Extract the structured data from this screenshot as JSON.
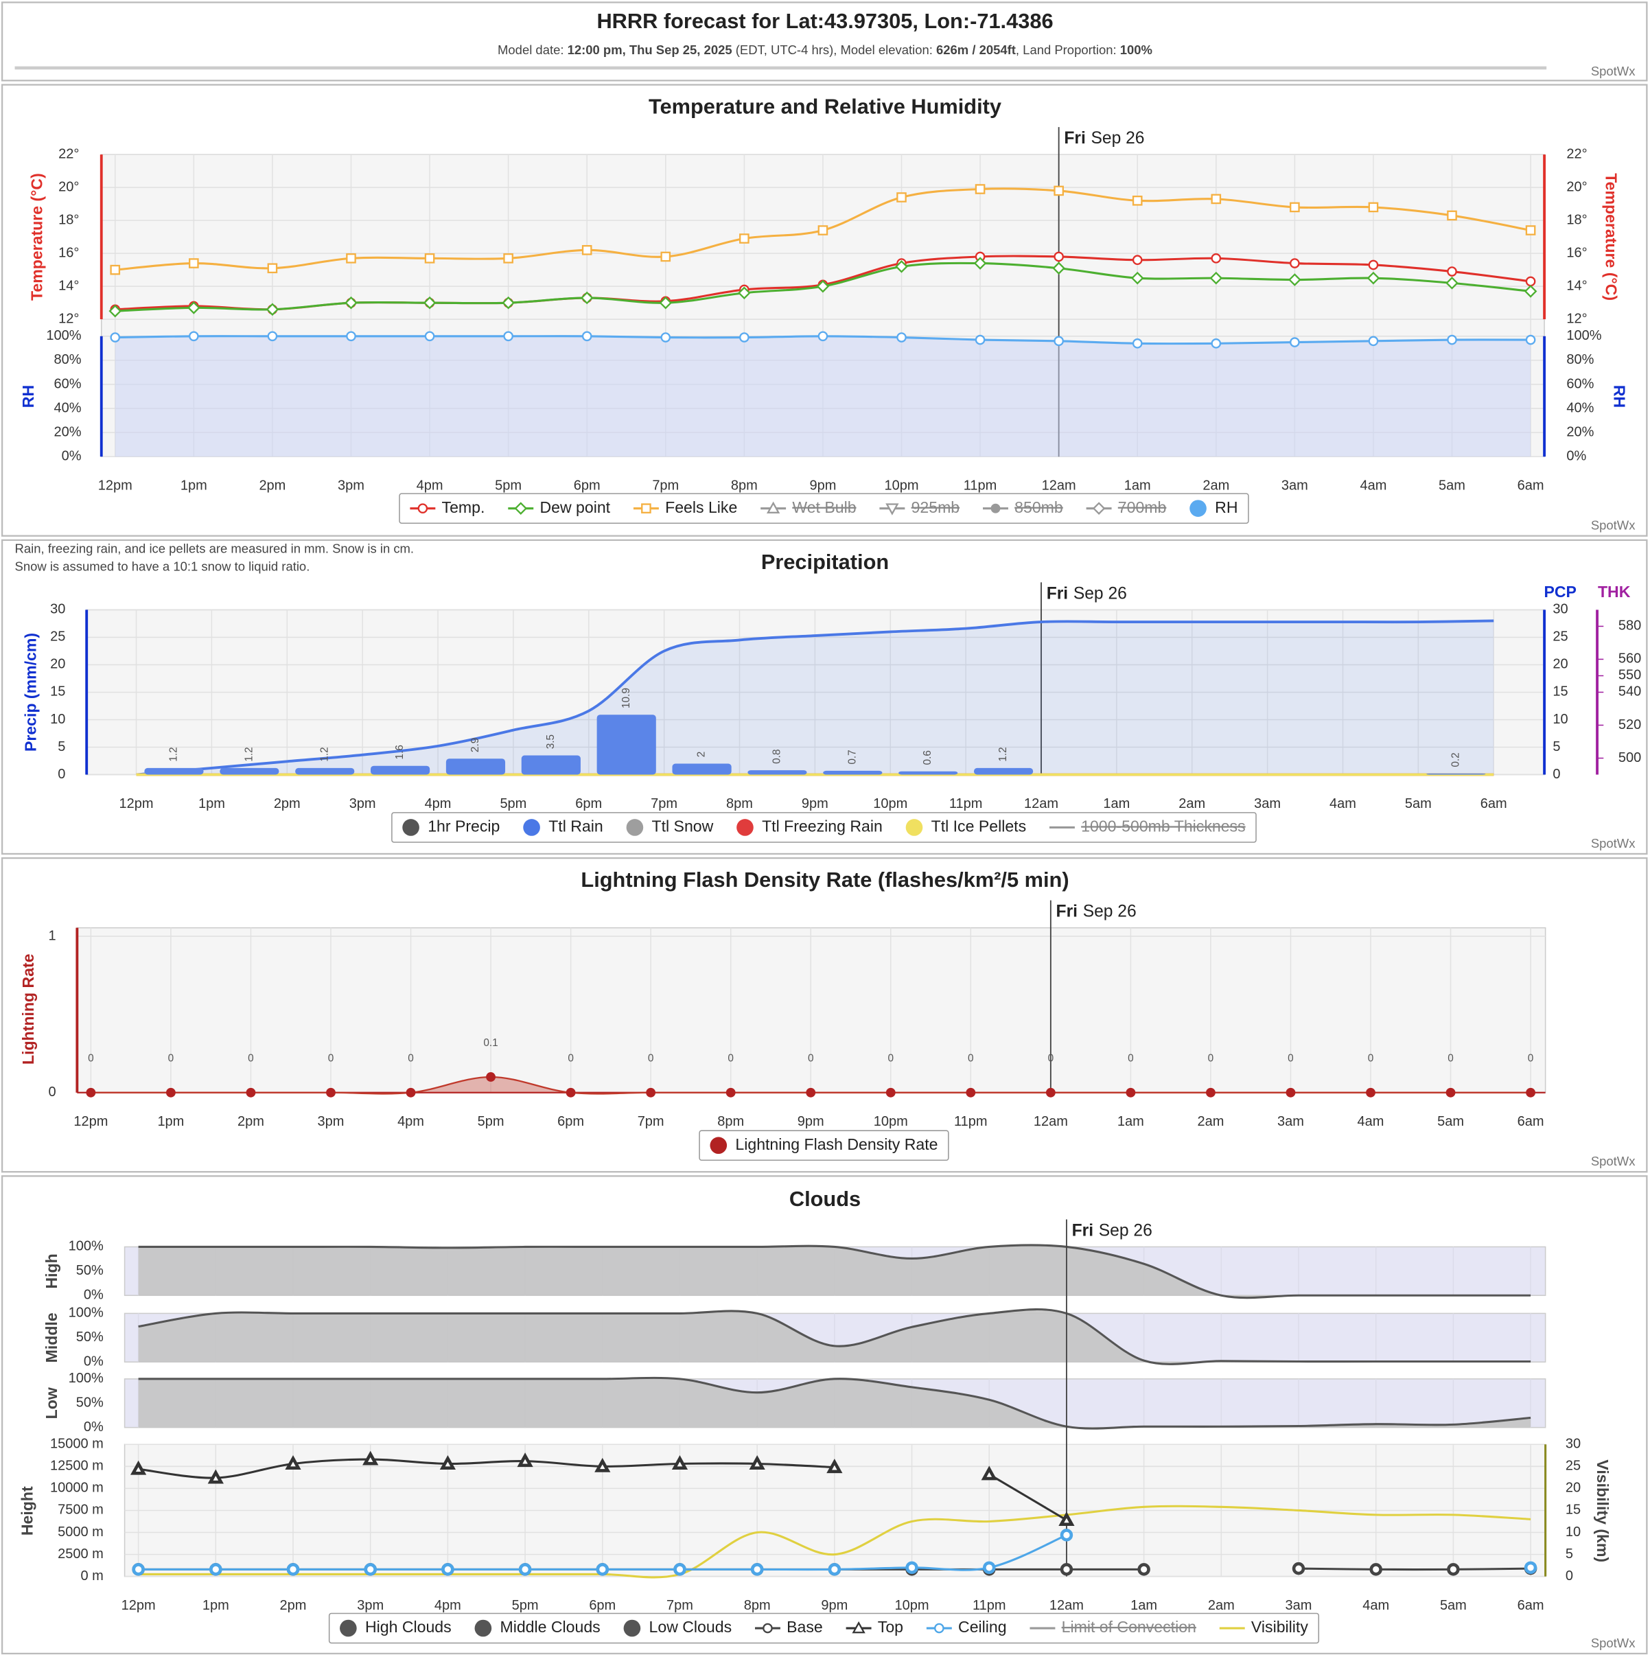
{
  "header": {
    "title": "HRRR forecast for Lat:43.97305, Lon:-71.4386",
    "subtitle": [
      {
        "text": "Model date: ",
        "bold": false
      },
      {
        "text": "12:00 pm, Thu Sep 25, 2025",
        "bold": true
      },
      {
        "text": " (EDT, UTC-4 hrs), Model elevation: ",
        "bold": false
      },
      {
        "text": "626m / 2054ft",
        "bold": true
      },
      {
        "text": ", Land Proportion: ",
        "bold": false
      },
      {
        "text": "100%",
        "bold": true
      }
    ]
  },
  "brand": "SpotWx",
  "chart_data": [
    {
      "type": "line",
      "title": "Temperature and Relative Humidity",
      "date_marker": {
        "weekday": "Fri",
        "date": "Sep 26",
        "x": "12am"
      },
      "categories": [
        "12pm",
        "1pm",
        "2pm",
        "3pm",
        "4pm",
        "5pm",
        "6pm",
        "7pm",
        "8pm",
        "9pm",
        "10pm",
        "11pm",
        "12am",
        "1am",
        "2am",
        "3am",
        "4am",
        "5am",
        "6am"
      ],
      "ylabel": "Temperature (°C)",
      "ylim": [
        12,
        22
      ],
      "yticks": [
        {
          "value": 12,
          "label": "12°"
        },
        {
          "value": 14,
          "label": "14°"
        },
        {
          "value": 16,
          "label": "16°"
        },
        {
          "value": 18,
          "label": "18°"
        },
        {
          "value": 20,
          "label": "20°"
        },
        {
          "value": 22,
          "label": "22°"
        }
      ],
      "rh_ylabel": "RH",
      "rh_ylim": [
        0,
        100
      ],
      "rh_yticks": [
        {
          "value": 0,
          "label": "0%"
        },
        {
          "value": 20,
          "label": "20%"
        },
        {
          "value": 40,
          "label": "40%"
        },
        {
          "value": 60,
          "label": "60%"
        },
        {
          "value": 80,
          "label": "80%"
        },
        {
          "value": 100,
          "label": "100%"
        }
      ],
      "grid": true,
      "series": [
        {
          "name": "Temp.",
          "color": "#e0302a",
          "style": "line",
          "marker": "circle",
          "values": [
            12.6,
            12.8,
            12.6,
            13.0,
            13.0,
            13.0,
            13.3,
            13.1,
            13.8,
            14.1,
            15.4,
            15.8,
            15.8,
            15.6,
            15.7,
            15.4,
            15.3,
            14.9,
            14.3
          ]
        },
        {
          "name": "Dew point",
          "color": "#4caf30",
          "style": "line",
          "marker": "diamond",
          "values": [
            12.5,
            12.7,
            12.6,
            13.0,
            13.0,
            13.0,
            13.3,
            13.0,
            13.6,
            14.0,
            15.2,
            15.4,
            15.1,
            14.5,
            14.5,
            14.4,
            14.5,
            14.2,
            13.7
          ]
        },
        {
          "name": "Feels Like",
          "color": "#f5b041",
          "style": "line",
          "marker": "square",
          "values": [
            15.0,
            15.4,
            15.1,
            15.7,
            15.7,
            15.7,
            16.2,
            15.8,
            16.9,
            17.4,
            19.4,
            19.9,
            19.8,
            19.2,
            19.3,
            18.8,
            18.8,
            18.3,
            17.4
          ]
        },
        {
          "name": "Wet Bulb",
          "color": "#888888",
          "style": "line",
          "marker": "triangle",
          "hidden": true
        },
        {
          "name": "925mb",
          "color": "#888888",
          "style": "line",
          "marker": "triangle-down",
          "hidden": true
        },
        {
          "name": "850mb",
          "color": "#888888",
          "style": "line",
          "marker": "dot",
          "hidden": true
        },
        {
          "name": "700mb",
          "color": "#888888",
          "style": "line",
          "marker": "diamond",
          "hidden": true
        },
        {
          "name": "RH",
          "color": "#5aaaf0",
          "style": "fill",
          "marker": "circle",
          "axis": "rh",
          "values": [
            99,
            100,
            100,
            100,
            100,
            100,
            100,
            99,
            99,
            100,
            99,
            97,
            96,
            94,
            94,
            95,
            96,
            97,
            97
          ]
        }
      ]
    },
    {
      "type": "bar",
      "title": "Precipitation",
      "notes": [
        "Rain, freezing rain, and ice pellets are measured in mm. Snow is in cm.",
        "Snow is assumed to have a 10:1 snow to liquid ratio."
      ],
      "date_marker": {
        "weekday": "Fri",
        "date": "Sep 26",
        "x": "12am"
      },
      "categories": [
        "12pm",
        "1pm",
        "2pm",
        "3pm",
        "4pm",
        "5pm",
        "6pm",
        "7pm",
        "8pm",
        "9pm",
        "10pm",
        "11pm",
        "12am",
        "1am",
        "2am",
        "3am",
        "4am",
        "5am",
        "6am"
      ],
      "ylabel": "Precip (mm/cm)",
      "ylim": [
        0,
        30
      ],
      "yticks": [
        0,
        5,
        10,
        15,
        20,
        25,
        30
      ],
      "y2label": "PCP",
      "y2lim": [
        0,
        30
      ],
      "y2ticks": [
        0,
        5,
        10,
        15,
        20,
        25,
        30
      ],
      "y3label": "THK",
      "y3lim": [
        490,
        590
      ],
      "y3ticks": [
        500,
        520,
        540,
        550,
        560,
        580
      ],
      "grid": true,
      "series": [
        {
          "name": "1hr Precip",
          "color": "#555555",
          "bar_color": "#5b85e8",
          "style": "bar",
          "values": [
            null,
            1.2,
            1.2,
            1.2,
            1.6,
            2.9,
            3.5,
            10.9,
            2,
            0.8,
            0.7,
            0.6,
            1.2,
            null,
            null,
            null,
            null,
            null,
            0.2
          ]
        },
        {
          "name": "Ttl Rain",
          "color": "#4a78e6",
          "style": "fill",
          "values": [
            0,
            1.2,
            2.4,
            3.6,
            5.2,
            8.1,
            11.6,
            22.5,
            24.5,
            25.3,
            26.0,
            26.6,
            27.8,
            27.8,
            27.8,
            27.8,
            27.8,
            27.8,
            28.0
          ]
        },
        {
          "name": "Ttl Snow",
          "color": "#9e9e9e",
          "style": "fill",
          "values": [
            0,
            0,
            0,
            0,
            0,
            0,
            0,
            0,
            0,
            0,
            0,
            0,
            0,
            0,
            0,
            0,
            0,
            0,
            0
          ]
        },
        {
          "name": "Ttl Freezing Rain",
          "color": "#e03c3c",
          "style": "fill",
          "values": [
            0,
            0,
            0,
            0,
            0,
            0,
            0,
            0,
            0,
            0,
            0,
            0,
            0,
            0,
            0,
            0,
            0,
            0,
            0
          ]
        },
        {
          "name": "Ttl Ice Pellets",
          "color": "#f0e060",
          "style": "fill",
          "values": [
            0,
            0,
            0,
            0,
            0,
            0,
            0,
            0,
            0,
            0,
            0,
            0,
            0,
            0,
            0,
            0,
            0,
            0,
            0
          ]
        },
        {
          "name": "1000-500mb Thickness",
          "color": "#888888",
          "style": "line",
          "marker": "none",
          "hidden": true
        }
      ]
    },
    {
      "type": "area",
      "title": "Lightning Flash Density Rate (flashes/km²/5 min)",
      "date_marker": {
        "weekday": "Fri",
        "date": "Sep 26",
        "x": "12am"
      },
      "categories": [
        "12pm",
        "1pm",
        "2pm",
        "3pm",
        "4pm",
        "5pm",
        "6pm",
        "7pm",
        "8pm",
        "9pm",
        "10pm",
        "11pm",
        "12am",
        "1am",
        "2am",
        "3am",
        "4am",
        "5am",
        "6am"
      ],
      "ylabel": "Lightning Rate",
      "ylim": [
        0,
        1
      ],
      "yticks": [
        0,
        1
      ],
      "grid": true,
      "series": [
        {
          "name": "Lightning Flash Density Rate",
          "color": "#b22222",
          "style": "fill",
          "marker": "dot",
          "values": [
            0,
            0,
            0,
            0,
            0,
            0.1,
            0,
            0,
            0,
            0,
            0,
            0,
            0,
            0,
            0,
            0,
            0,
            0,
            0
          ]
        }
      ]
    },
    {
      "type": "cloud",
      "title": "Clouds",
      "date_marker": {
        "weekday": "Fri",
        "date": "Sep 26",
        "x": "12am"
      },
      "categories": [
        "12pm",
        "1pm",
        "2pm",
        "3pm",
        "4pm",
        "5pm",
        "6pm",
        "7pm",
        "8pm",
        "9pm",
        "10pm",
        "11pm",
        "12am",
        "1am",
        "2am",
        "3am",
        "4am",
        "5am",
        "6am"
      ],
      "pane_ylim": [
        0,
        100
      ],
      "pane_yticks": [
        {
          "value": 0,
          "label": "0%"
        },
        {
          "value": 50,
          "label": "50%"
        },
        {
          "value": 100,
          "label": "100%"
        }
      ],
      "ylabel": "Height",
      "ylim": [
        0,
        15000
      ],
      "yticks": [
        {
          "value": 0,
          "label": "0 m"
        },
        {
          "value": 2500,
          "label": "2500 m"
        },
        {
          "value": 5000,
          "label": "5000 m"
        },
        {
          "value": 7500,
          "label": "7500 m"
        },
        {
          "value": 10000,
          "label": "10000 m"
        },
        {
          "value": 12500,
          "label": "12500 m"
        },
        {
          "value": 15000,
          "label": "15000 m"
        }
      ],
      "y2label": "Visibility (km)",
      "y2lim": [
        0,
        30
      ],
      "y2ticks": [
        0,
        5,
        10,
        15,
        20,
        25,
        30
      ],
      "grid": true,
      "series": [
        {
          "name": "High Clouds",
          "pane_label": "High",
          "color": "#555555",
          "style": "fill",
          "values": [
            100,
            100,
            100,
            100,
            98,
            100,
            100,
            100,
            100,
            100,
            76,
            100,
            100,
            65,
            0,
            0,
            0,
            0,
            0
          ]
        },
        {
          "name": "Middle Clouds",
          "pane_label": "Middle",
          "color": "#555555",
          "style": "fill",
          "values": [
            73,
            100,
            100,
            100,
            100,
            100,
            100,
            100,
            100,
            33,
            72,
            100,
            100,
            3,
            2,
            1,
            1,
            1,
            1
          ]
        },
        {
          "name": "Low Clouds",
          "pane_label": "Low",
          "color": "#555555",
          "style": "fill",
          "values": [
            100,
            100,
            100,
            100,
            100,
            100,
            100,
            100,
            72,
            100,
            83,
            57,
            2,
            2,
            2,
            3,
            7,
            6,
            20
          ]
        },
        {
          "name": "Base",
          "color": "#444444",
          "style": "line",
          "marker": "circle",
          "values": [
            800,
            800,
            800,
            800,
            800,
            800,
            800,
            800,
            800,
            800,
            800,
            800,
            800,
            800,
            null,
            900,
            800,
            800,
            900
          ]
        },
        {
          "name": "Top",
          "color": "#333333",
          "style": "line",
          "marker": "triangle",
          "values": [
            12200,
            11200,
            12800,
            13300,
            12800,
            13100,
            12500,
            12800,
            12800,
            12400,
            null,
            11600,
            6400,
            null,
            null,
            null,
            null,
            null,
            null
          ]
        },
        {
          "name": "Ceiling",
          "color": "#4da6e8",
          "style": "line",
          "marker": "circle",
          "values": [
            800,
            800,
            800,
            800,
            800,
            800,
            800,
            800,
            800,
            800,
            1000,
            1000,
            4700,
            null,
            null,
            null,
            null,
            null,
            1000
          ]
        },
        {
          "name": "Limit of Convection",
          "color": "#888888",
          "style": "line",
          "marker": "none",
          "hidden": true
        },
        {
          "name": "Visibility",
          "color": "#e0d040",
          "style": "line",
          "marker": "none",
          "axis": "y2",
          "values": [
            0.5,
            0.5,
            0.5,
            0.5,
            0.5,
            0.5,
            0.5,
            0.5,
            10,
            5,
            12.5,
            12.5,
            14,
            15.8,
            15.8,
            15,
            14,
            14,
            13
          ]
        }
      ]
    }
  ]
}
